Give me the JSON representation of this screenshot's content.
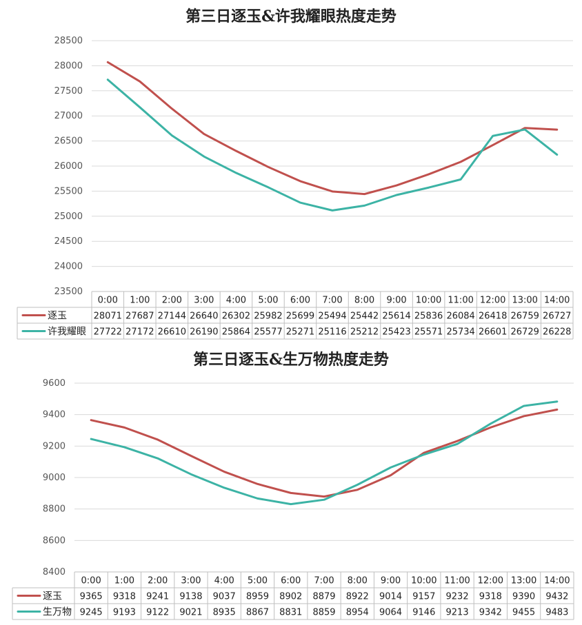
{
  "chart_data": [
    {
      "type": "line",
      "title": "第三日逐玉&许我耀眼热度走势",
      "categories": [
        "0:00",
        "1:00",
        "2:00",
        "3:00",
        "4:00",
        "5:00",
        "6:00",
        "7:00",
        "8:00",
        "9:00",
        "10:00",
        "11:00",
        "12:00",
        "13:00",
        "14:00"
      ],
      "series": [
        {
          "name": "逐玉",
          "color": "#c0504d",
          "values": [
            28071,
            27687,
            27144,
            26640,
            26302,
            25982,
            25699,
            25494,
            25442,
            25614,
            25836,
            26084,
            26418,
            26759,
            26727
          ]
        },
        {
          "name": "许我耀眼",
          "color": "#3cb3a5",
          "values": [
            27722,
            27172,
            26610,
            26190,
            25864,
            25577,
            25271,
            25116,
            25212,
            25423,
            25571,
            25734,
            26601,
            26729,
            26228
          ]
        }
      ],
      "yticks": [
        23500,
        24000,
        24500,
        25000,
        25500,
        26000,
        26500,
        27000,
        27500,
        28000,
        28500
      ],
      "ylim": [
        23500,
        28500
      ],
      "grid": true,
      "data_table": true
    },
    {
      "type": "line",
      "title": "第三日逐玉&生万物热度走势",
      "categories": [
        "0:00",
        "1:00",
        "2:00",
        "3:00",
        "4:00",
        "5:00",
        "6:00",
        "7:00",
        "8:00",
        "9:00",
        "10:00",
        "11:00",
        "12:00",
        "13:00",
        "14:00"
      ],
      "series": [
        {
          "name": "逐玉",
          "color": "#c0504d",
          "values": [
            9365,
            9318,
            9241,
            9138,
            9037,
            8959,
            8902,
            8879,
            8922,
            9014,
            9157,
            9232,
            9318,
            9390,
            9432
          ]
        },
        {
          "name": "生万物",
          "color": "#3cb3a5",
          "values": [
            9245,
            9193,
            9122,
            9021,
            8935,
            8867,
            8831,
            8859,
            8954,
            9064,
            9146,
            9213,
            9342,
            9455,
            9483
          ]
        }
      ],
      "yticks": [
        8400,
        8600,
        8800,
        9000,
        9200,
        9400,
        9600
      ],
      "ylim": [
        8400,
        9600
      ],
      "grid": true,
      "data_table": true
    }
  ]
}
